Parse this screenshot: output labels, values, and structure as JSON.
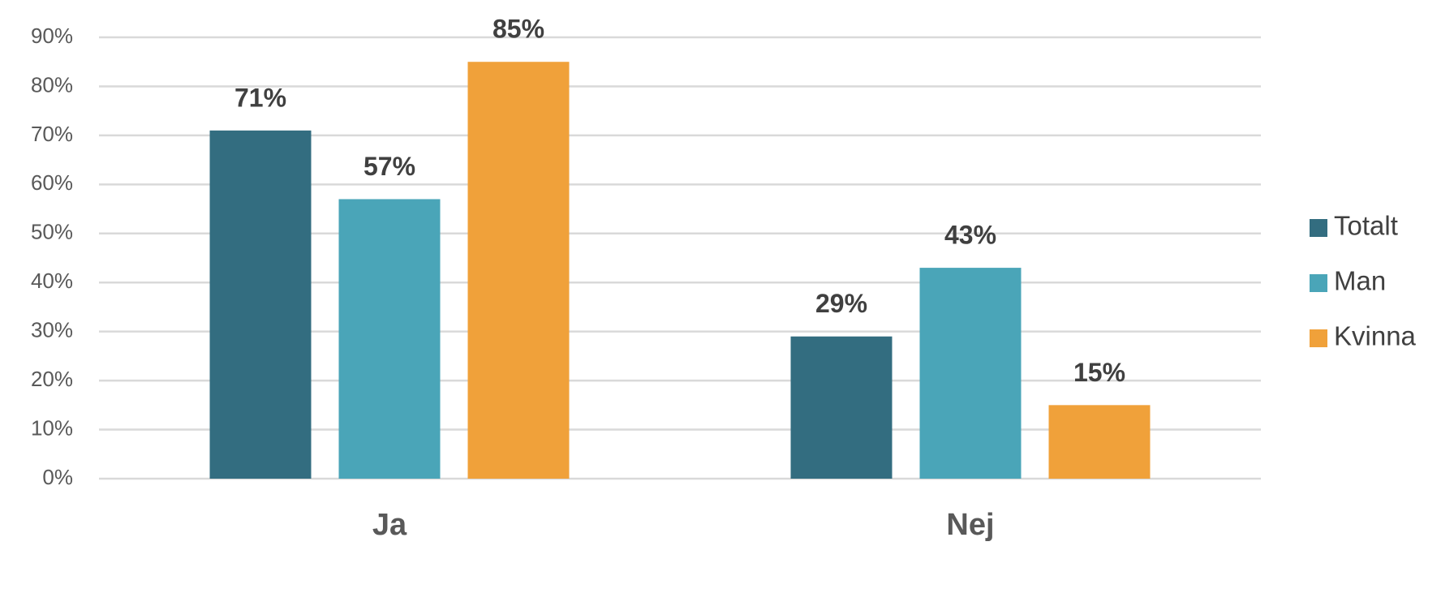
{
  "chart_data": {
    "type": "bar",
    "categories": [
      "Ja",
      "Nej"
    ],
    "series": [
      {
        "name": "Totalt",
        "color": "#336d80",
        "values": [
          71,
          29
        ],
        "value_labels": [
          "71%",
          "29%"
        ]
      },
      {
        "name": "Man",
        "color": "#4aa5b8",
        "values": [
          57,
          43
        ],
        "value_labels": [
          "57%",
          "43%"
        ]
      },
      {
        "name": "Kvinna",
        "color": "#f0a13a",
        "values": [
          85,
          15
        ],
        "value_labels": [
          "85%",
          "15%"
        ]
      }
    ],
    "ylim": [
      0,
      90
    ],
    "yticks": [
      {
        "value": 0,
        "label": "0%"
      },
      {
        "value": 10,
        "label": "10%"
      },
      {
        "value": 20,
        "label": "20%"
      },
      {
        "value": 30,
        "label": "30%"
      },
      {
        "value": 40,
        "label": "40%"
      },
      {
        "value": 50,
        "label": "50%"
      },
      {
        "value": 60,
        "label": "60%"
      },
      {
        "value": 70,
        "label": "70%"
      },
      {
        "value": 80,
        "label": "80%"
      },
      {
        "value": 90,
        "label": "90%"
      }
    ],
    "grid": true,
    "legend": "right"
  }
}
